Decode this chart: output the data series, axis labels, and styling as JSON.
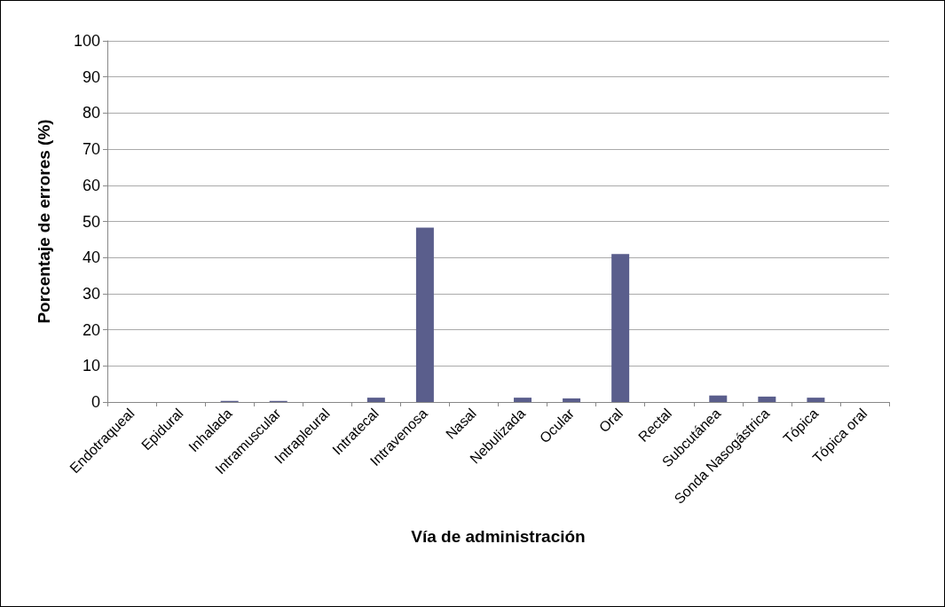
{
  "chart_data": {
    "type": "bar",
    "xlabel": "Vía de administración",
    "ylabel": "Porcentaje de errores (%)",
    "categories": [
      "Endotraqueal",
      "Epidural",
      "Inhalada",
      "Intramuscular",
      "Intrapleural",
      "Intratecal",
      "Intravenosa",
      "Nasal",
      "Nebulizada",
      "Ocular",
      "Oral",
      "Rectal",
      "Subcutánea",
      "Sonda Nasogástrica",
      "Tópica",
      "Tópica oral"
    ],
    "values": [
      0,
      0,
      0.3,
      0.3,
      0,
      1.2,
      48.3,
      0,
      1.2,
      1.0,
      41,
      0,
      1.8,
      1.5,
      1.2,
      0
    ],
    "color": "#5a5e8c",
    "ylim": [
      0,
      100
    ],
    "yticks": [
      0,
      10,
      20,
      30,
      40,
      50,
      60,
      70,
      80,
      90,
      100
    ],
    "grid": "y"
  }
}
